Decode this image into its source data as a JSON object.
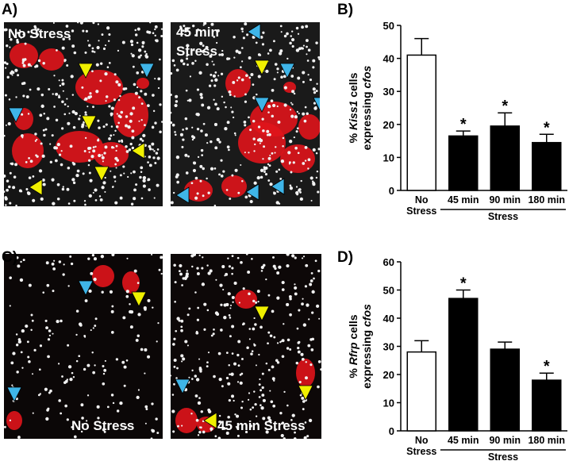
{
  "images": [
    {
      "label": "A)",
      "captions": [
        "No Stress",
        "45 min Stress"
      ]
    },
    {
      "label": "C)",
      "captions": [
        "No Stress",
        "45 min Stress"
      ]
    }
  ],
  "chart_data": [
    {
      "type": "bar",
      "label": "B)",
      "ylabel": [
        [
          "% ",
          "Kiss1",
          " cells"
        ],
        [
          "expressing ",
          "cfos"
        ]
      ],
      "categories": [
        "No Stress",
        "45 min",
        "90 min",
        "180 min"
      ],
      "group_label": "Stress",
      "series": [
        {
          "values": [
            41,
            16.5,
            19.5,
            14.5
          ],
          "errors": [
            5,
            1.5,
            4,
            2.5
          ],
          "colors": [
            "#ffffff",
            "#000000",
            "#000000",
            "#000000"
          ],
          "annotations": [
            null,
            "*",
            "*",
            "*"
          ]
        }
      ],
      "ylim": [
        0,
        50
      ],
      "yticks": [
        0,
        10,
        20,
        30,
        40,
        50
      ]
    },
    {
      "type": "bar",
      "label": "D)",
      "ylabel": [
        [
          "% ",
          "Rfrp",
          " cells"
        ],
        [
          "expressing ",
          "cfos"
        ]
      ],
      "categories": [
        "No Stress",
        "45 min",
        "90 min",
        "180 min"
      ],
      "group_label": "Stress",
      "series": [
        {
          "values": [
            28,
            47,
            29,
            18
          ],
          "errors": [
            4,
            3,
            2.5,
            2.5
          ],
          "colors": [
            "#ffffff",
            "#000000",
            "#000000",
            "#000000"
          ],
          "annotations": [
            null,
            "*",
            null,
            "*"
          ]
        }
      ],
      "ylim": [
        0,
        60
      ],
      "yticks": [
        0,
        10,
        20,
        30,
        40,
        50,
        60
      ]
    }
  ]
}
